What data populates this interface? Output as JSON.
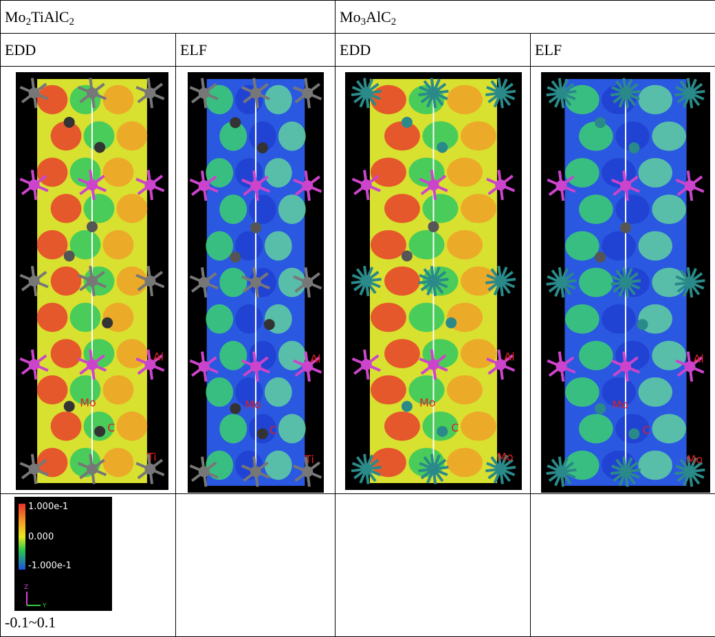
{
  "table": {
    "header": [
      {
        "parts": [
          "Mo",
          "2",
          "TiAlC",
          "2"
        ]
      },
      {
        "parts": [
          "Mo",
          "3",
          "AlC",
          "2"
        ]
      }
    ],
    "subheader": [
      "EDD",
      "ELF",
      "EDD",
      "ELF"
    ],
    "images": [
      {
        "labels": [
          "Al",
          "Mo",
          "C",
          "Ti"
        ]
      },
      {
        "labels": [
          "Al",
          "Mo",
          "C",
          "Ti"
        ]
      },
      {
        "labels": [
          "Al",
          "Mo",
          "C",
          "Mo"
        ]
      },
      {
        "labels": [
          "Al",
          "Mo",
          "C",
          "Mo"
        ]
      }
    ],
    "legend": {
      "ticks": [
        "1.000e-1",
        "0.000",
        "-1.000e-1"
      ],
      "axes": [
        "Z",
        "Y"
      ],
      "caption": "-0.1~0.1"
    }
  }
}
